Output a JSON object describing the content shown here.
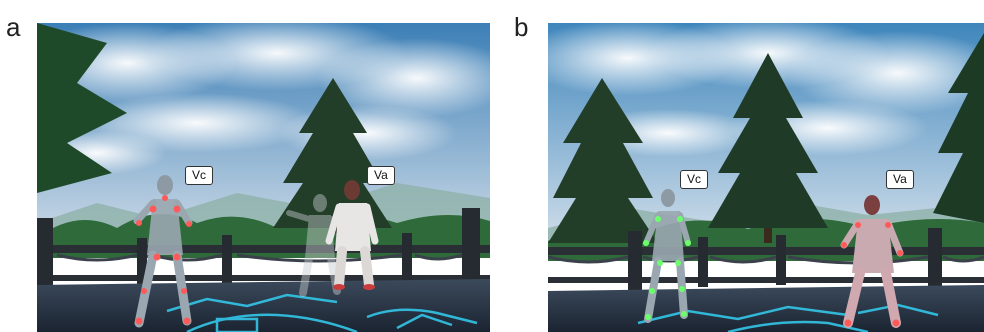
{
  "panels": [
    {
      "letter": "a",
      "label_c": "Vc",
      "label_a": "Va"
    },
    {
      "letter": "b",
      "label_c": "Vc",
      "label_a": "Va"
    }
  ],
  "colors": {
    "sky_top": "#4f8fc0",
    "sky_bottom": "#c9d8e6",
    "cloud": "#f4f8fb",
    "floor_glow": "#33c6e8",
    "marker_a": "#ff5a5a",
    "marker_b": "#6cff6c"
  },
  "icons": [
    "tree",
    "avatar",
    "railing"
  ]
}
